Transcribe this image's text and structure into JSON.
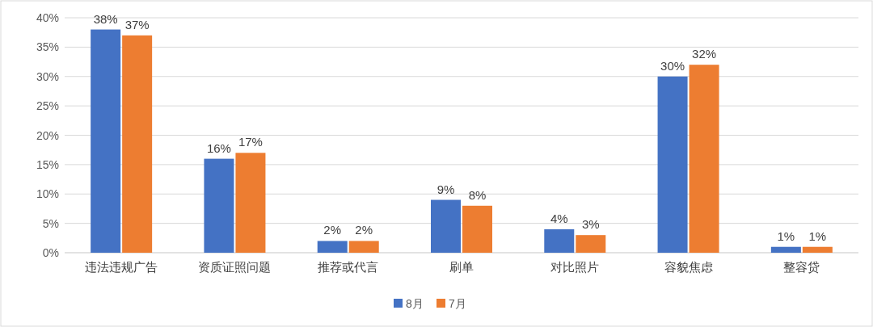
{
  "chart_data": {
    "type": "bar",
    "categories": [
      "违法违规广告",
      "资质证照问题",
      "推荐或代言",
      "刷单",
      "对比照片",
      "容貌焦虑",
      "整容贷"
    ],
    "series": [
      {
        "name": "8月",
        "color": "#4472c4",
        "values": [
          38,
          16,
          2,
          9,
          4,
          30,
          1
        ],
        "value_labels": [
          "38%",
          "16%",
          "2%",
          "9%",
          "4%",
          "30%",
          "1%"
        ]
      },
      {
        "name": "7月",
        "color": "#ed7d31",
        "values": [
          37,
          17,
          2,
          8,
          3,
          32,
          1
        ],
        "value_labels": [
          "37%",
          "17%",
          "2%",
          "8%",
          "3%",
          "32%",
          "1%"
        ]
      }
    ],
    "ylim": [
      0,
      40
    ],
    "yticks": [
      {
        "value": 0,
        "label": "0%"
      },
      {
        "value": 5,
        "label": "5%"
      },
      {
        "value": 10,
        "label": "10%"
      },
      {
        "value": 15,
        "label": "15%"
      },
      {
        "value": 20,
        "label": "20%"
      },
      {
        "value": 25,
        "label": "25%"
      },
      {
        "value": 30,
        "label": "30%"
      },
      {
        "value": 35,
        "label": "35%"
      },
      {
        "value": 40,
        "label": "40%"
      }
    ],
    "grid": "y",
    "legend": "bottom"
  }
}
